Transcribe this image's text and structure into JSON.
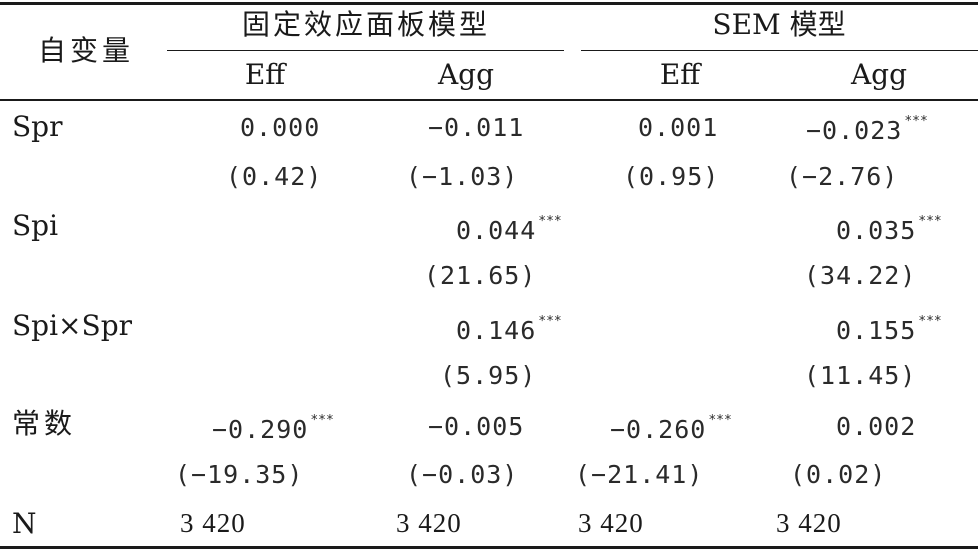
{
  "table": {
    "header": {
      "var_label": "自变量",
      "group1": "固定效应面板模型",
      "group2": "SEM 模型",
      "cols": [
        "Eff",
        "Agg",
        "Eff",
        "Agg"
      ]
    },
    "rows": {
      "spr": {
        "label": "Spr",
        "coef": [
          "0.000",
          "−0.011",
          "0.001",
          "−0.023"
        ],
        "stars": [
          "",
          "",
          "",
          "***"
        ],
        "t": [
          "(0.42)",
          "(−1.03)",
          "(0.95)",
          "(−2.76)"
        ]
      },
      "spi": {
        "label": "Spi",
        "coef": [
          "",
          "0.044",
          "",
          "0.035"
        ],
        "stars": [
          "",
          "***",
          "",
          "***"
        ],
        "t": [
          "",
          "(21.65)",
          "",
          "(34.22)"
        ]
      },
      "spixspr": {
        "label": "Spi×Spr",
        "coef": [
          "",
          "0.146",
          "",
          "0.155"
        ],
        "stars": [
          "",
          "***",
          "",
          "***"
        ],
        "t": [
          "",
          "(5.95)",
          "",
          "(11.45)"
        ]
      },
      "const": {
        "label": "常数",
        "coef": [
          "−0.290",
          "−0.005",
          "−0.260",
          "0.002"
        ],
        "stars": [
          "***",
          "",
          "***",
          ""
        ],
        "t": [
          "(−19.35)",
          "(−0.03)",
          "(−21.41)",
          "(0.02)"
        ]
      },
      "n": {
        "label": "N",
        "values": [
          "3 420",
          "3 420",
          "3 420",
          "3 420"
        ]
      }
    }
  }
}
